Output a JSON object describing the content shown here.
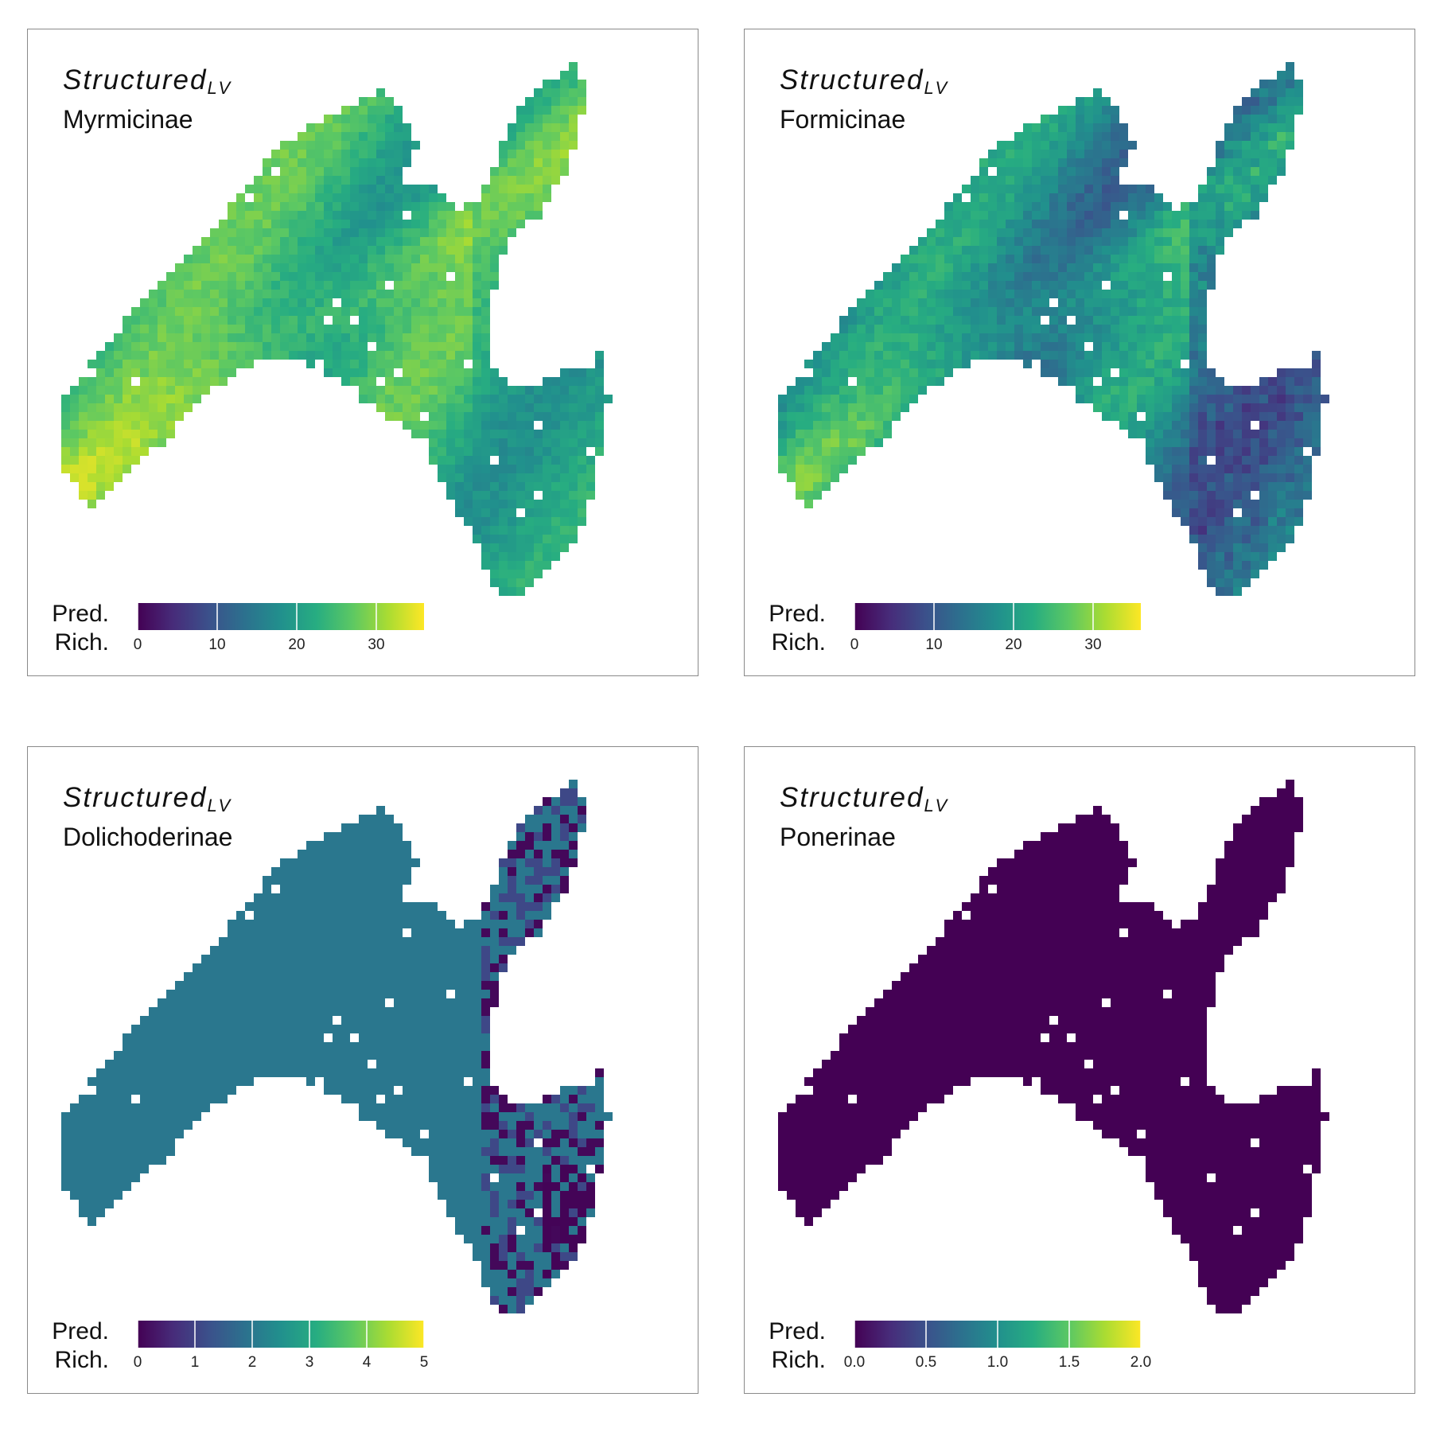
{
  "colors": {
    "viridis": [
      "#440154",
      "#472c7a",
      "#3b518b",
      "#2c718e",
      "#21908d",
      "#27ad81",
      "#5cc863",
      "#aadc32",
      "#fde725"
    ],
    "panel_border": "#8a8a8a"
  },
  "panels": [
    {
      "model_label": "Structured",
      "model_subscript": "LV",
      "family": "Myrmicinae",
      "legend": {
        "title_line1": "Pred.",
        "title_line2": "Rich.",
        "min": 0,
        "max": 36,
        "ticks": [
          0,
          10,
          20,
          30
        ],
        "tick_labels": [
          "0",
          "10",
          "20",
          "30"
        ]
      },
      "map_style": "gradient",
      "value_range_shown": [
        12,
        34
      ]
    },
    {
      "model_label": "Structured",
      "model_subscript": "LV",
      "family": "Formicinae",
      "legend": {
        "title_line1": "Pred.",
        "title_line2": "Rich.",
        "min": 0,
        "max": 36,
        "ticks": [
          0,
          10,
          20,
          30
        ],
        "tick_labels": [
          "0",
          "10",
          "20",
          "30"
        ]
      },
      "map_style": "gradient",
      "value_range_shown": [
        5,
        32
      ]
    },
    {
      "model_label": "Structured",
      "model_subscript": "LV",
      "family": "Dolichoderinae",
      "legend": {
        "title_line1": "Pred.",
        "title_line2": "Rich.",
        "min": 0,
        "max": 5,
        "ticks": [
          0,
          1,
          2,
          3,
          4,
          5
        ],
        "tick_labels": [
          "0",
          "1",
          "2",
          "3",
          "4",
          "5"
        ]
      },
      "map_style": "flat-teal",
      "value_range_shown": [
        0,
        2
      ]
    },
    {
      "model_label": "Structured",
      "model_subscript": "LV",
      "family": "Ponerinae",
      "legend": {
        "title_line1": "Pred.",
        "title_line2": "Rich.",
        "min": 0,
        "max": 2,
        "ticks": [
          0,
          0.5,
          1,
          1.5,
          2
        ],
        "tick_labels": [
          "0.0",
          "0.5",
          "1.0",
          "1.5",
          "2.0"
        ]
      },
      "map_style": "flat-dark",
      "value_range_shown": [
        0,
        0
      ]
    }
  ]
}
